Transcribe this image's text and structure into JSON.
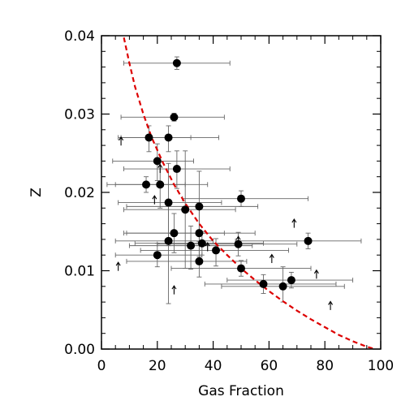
{
  "chart_data": {
    "type": "scatter",
    "title": "",
    "xlabel": "Gas Fraction",
    "ylabel": "Z",
    "xlim": [
      0,
      100
    ],
    "ylim": [
      0,
      0.04
    ],
    "x_ticks": [
      0,
      20,
      40,
      60,
      80,
      100
    ],
    "x_tick_labels": [
      "0",
      "20",
      "40",
      "60",
      "80",
      "100"
    ],
    "y_ticks": [
      0.0,
      0.01,
      0.02,
      0.03,
      0.04
    ],
    "y_tick_labels": [
      "0.00",
      "0.01",
      "0.02",
      "0.03",
      "0.04"
    ],
    "grid": false,
    "legend": "none",
    "colors": {
      "points": "#000000",
      "errorbars": "#666666",
      "curve": "#dd0000",
      "axes": "#000000"
    },
    "series": [
      {
        "marker": "filled-circle",
        "points": [
          {
            "x": 27,
            "y": 0.0365,
            "xerr": [
              19,
              19
            ],
            "yerr": [
              0.0008,
              0.0008
            ]
          },
          {
            "x": 26,
            "y": 0.0296,
            "xerr": [
              19,
              18
            ],
            "yerr": [
              0.0005,
              0.0005
            ]
          },
          {
            "x": 17,
            "y": 0.027,
            "xerr": [
              11,
              15
            ],
            "yerr": [
              0.0018,
              0.0015
            ]
          },
          {
            "x": 24,
            "y": 0.027,
            "xerr": [
              17,
              18
            ],
            "yerr": [
              0.0018,
              0.0015
            ]
          },
          {
            "x": 20,
            "y": 0.024,
            "xerr": [
              16,
              13
            ],
            "yerr": [
              0.0025,
              0.0022
            ]
          },
          {
            "x": 27,
            "y": 0.023,
            "xerr": [
              19,
              19
            ],
            "yerr": [
              0.0025,
              0.0023
            ]
          },
          {
            "x": 16,
            "y": 0.021,
            "xerr": [
              14,
              14
            ],
            "yerr": [
              0.001,
              0.001
            ]
          },
          {
            "x": 21,
            "y": 0.021,
            "xerr": [
              16,
              17
            ],
            "yerr": [
              0.003,
              0.003
            ]
          },
          {
            "x": 24,
            "y": 0.0187,
            "xerr": [
              18,
              19
            ],
            "yerr": [
              0.0055,
              0.005
            ]
          },
          {
            "x": 30,
            "y": 0.0178,
            "xerr": [
              22,
              18
            ],
            "yerr": [
              0.0075,
              0.0075
            ]
          },
          {
            "x": 35,
            "y": 0.0182,
            "xerr": [
              26,
              21
            ],
            "yerr": [
              0.0045,
              0.0045
            ]
          },
          {
            "x": 50,
            "y": 0.0192,
            "xerr": [
              21,
              24
            ],
            "yerr": [
              0.001,
              0.001
            ]
          },
          {
            "x": 35,
            "y": 0.0148,
            "xerr": [
              26,
              20
            ],
            "yerr": [
              0.003,
              0.003
            ]
          },
          {
            "x": 26,
            "y": 0.0148,
            "xerr": [
              18,
              18
            ],
            "yerr": [
              0.0025,
              0.0025
            ]
          },
          {
            "x": 24,
            "y": 0.0138,
            "xerr": [
              19,
              16
            ],
            "yerr": [
              0.008,
              0.005
            ]
          },
          {
            "x": 32,
            "y": 0.0132,
            "xerr": [
              22,
              22
            ],
            "yerr": [
              0.003,
              0.0025
            ]
          },
          {
            "x": 36,
            "y": 0.0135,
            "xerr": [
              24,
              22
            ],
            "yerr": [
              0.0015,
              0.0015
            ]
          },
          {
            "x": 41,
            "y": 0.0126,
            "xerr": [
              27,
              26
            ],
            "yerr": [
              0.002,
              0.0015
            ]
          },
          {
            "x": 49,
            "y": 0.0134,
            "xerr": [
              29,
              21
            ],
            "yerr": [
              0.0015,
              0.0015
            ]
          },
          {
            "x": 74,
            "y": 0.0138,
            "xerr": [
              26,
              19
            ],
            "yerr": [
              0.001,
              0.001
            ]
          },
          {
            "x": 20,
            "y": 0.012,
            "xerr": [
              15,
              16
            ],
            "yerr": [
              0.0015,
              0.0015
            ]
          },
          {
            "x": 35,
            "y": 0.0112,
            "xerr": [
              26,
              17
            ],
            "yerr": [
              0.002,
              0.002
            ]
          },
          {
            "x": 50,
            "y": 0.0103,
            "xerr": [
              25,
              25
            ],
            "yerr": [
              0.001,
              0.001
            ]
          },
          {
            "x": 58,
            "y": 0.0083,
            "xerr": [
              21,
              26
            ],
            "yerr": [
              0.0012,
              0.0012
            ]
          },
          {
            "x": 65,
            "y": 0.008,
            "xerr": [
              22,
              22
            ],
            "yerr": [
              0.002,
              0.0025
            ]
          },
          {
            "x": 68,
            "y": 0.0088,
            "xerr": [
              23,
              22
            ],
            "yerr": [
              0.001,
              0.001
            ]
          }
        ]
      },
      {
        "marker": "upward-arrow",
        "points": [
          {
            "x": 7,
            "y": 0.0265
          },
          {
            "x": 21,
            "y": 0.023
          },
          {
            "x": 19,
            "y": 0.019
          },
          {
            "x": 69,
            "y": 0.016
          },
          {
            "x": 49,
            "y": 0.0138
          },
          {
            "x": 38,
            "y": 0.013
          },
          {
            "x": 6,
            "y": 0.0105
          },
          {
            "x": 61,
            "y": 0.0115
          },
          {
            "x": 77,
            "y": 0.0095
          },
          {
            "x": 26,
            "y": 0.0075
          },
          {
            "x": 82,
            "y": 0.0055
          }
        ]
      },
      {
        "style": "dashed",
        "points": [
          {
            "x": 7,
            "y": 0.0418
          },
          {
            "x": 8,
            "y": 0.0398
          },
          {
            "x": 10,
            "y": 0.0365
          },
          {
            "x": 12,
            "y": 0.0335
          },
          {
            "x": 15,
            "y": 0.03
          },
          {
            "x": 18,
            "y": 0.027
          },
          {
            "x": 22,
            "y": 0.0238
          },
          {
            "x": 26,
            "y": 0.021
          },
          {
            "x": 30,
            "y": 0.0186
          },
          {
            "x": 35,
            "y": 0.016
          },
          {
            "x": 40,
            "y": 0.0138
          },
          {
            "x": 45,
            "y": 0.012
          },
          {
            "x": 50,
            "y": 0.0103
          },
          {
            "x": 55,
            "y": 0.0088
          },
          {
            "x": 60,
            "y": 0.0074
          },
          {
            "x": 65,
            "y": 0.0061
          },
          {
            "x": 70,
            "y": 0.0049
          },
          {
            "x": 75,
            "y": 0.0038
          },
          {
            "x": 80,
            "y": 0.0028
          },
          {
            "x": 85,
            "y": 0.0018
          },
          {
            "x": 90,
            "y": 0.001
          },
          {
            "x": 95,
            "y": 0.0003
          },
          {
            "x": 98,
            "y": 0.0
          }
        ]
      }
    ]
  }
}
